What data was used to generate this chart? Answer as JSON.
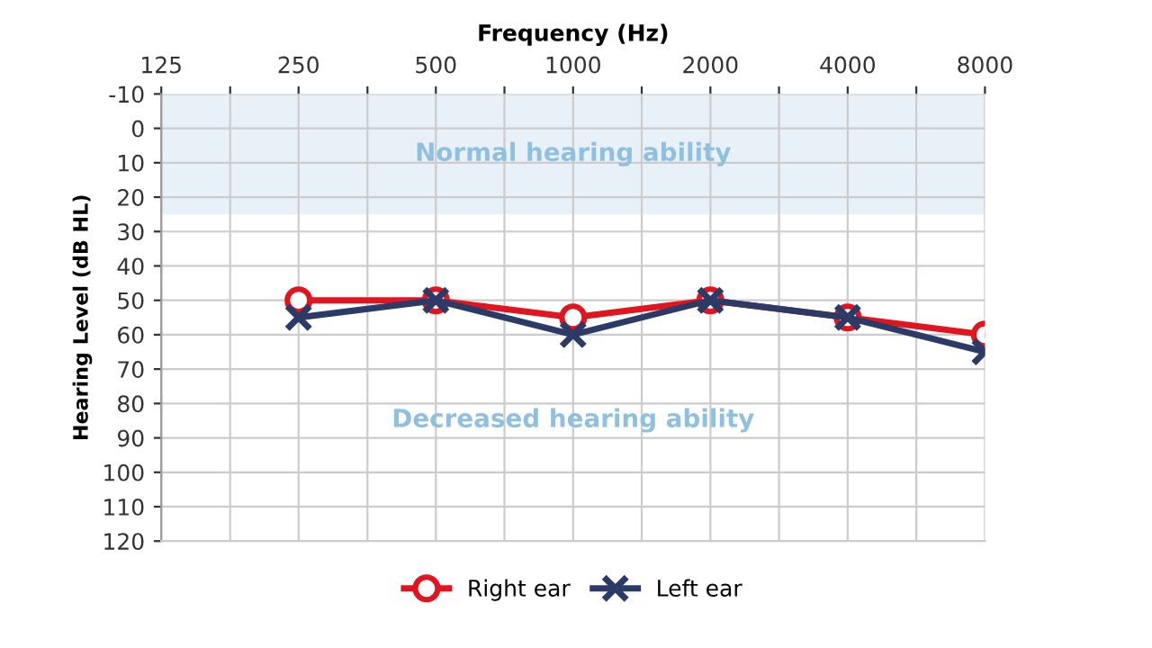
{
  "chart_data": {
    "type": "line",
    "xlabel": "Frequency (Hz)",
    "ylabel": "Hearing Level (dB HL)",
    "x": [
      250,
      500,
      1000,
      2000,
      4000,
      8000
    ],
    "series": [
      {
        "name": "Right ear",
        "color": "#e0151f",
        "marker": "circle",
        "values": [
          50,
          50,
          55,
          50,
          55,
          60
        ]
      },
      {
        "name": "Left ear",
        "color": "#2b3a67",
        "marker": "cross",
        "values": [
          55,
          50,
          60,
          50,
          55,
          65
        ]
      }
    ],
    "log": "x",
    "xlim": [
      125,
      8000
    ],
    "xticks": [
      125,
      {
        "value": 177,
        "label": null
      },
      250,
      {
        "value": 354,
        "label": null
      },
      500,
      {
        "value": 707,
        "label": null
      },
      1000,
      {
        "value": 1414,
        "label": null
      },
      2000,
      {
        "value": 2828,
        "label": null
      },
      4000,
      {
        "value": 5657,
        "label": null
      },
      8000
    ],
    "ylim": [
      120,
      -10
    ],
    "yticks": [
      -10,
      0,
      10,
      20,
      30,
      40,
      50,
      60,
      70,
      80,
      90,
      100,
      110,
      120
    ],
    "bands": [
      {
        "axis": "y",
        "from": -10,
        "to": 25,
        "color": "#e8f0f8",
        "label": "Normal hearing ability"
      }
    ],
    "annotations": [
      "Decreased hearing ability"
    ],
    "grid": true,
    "legend": "bottom",
    "line_style": "solid"
  }
}
